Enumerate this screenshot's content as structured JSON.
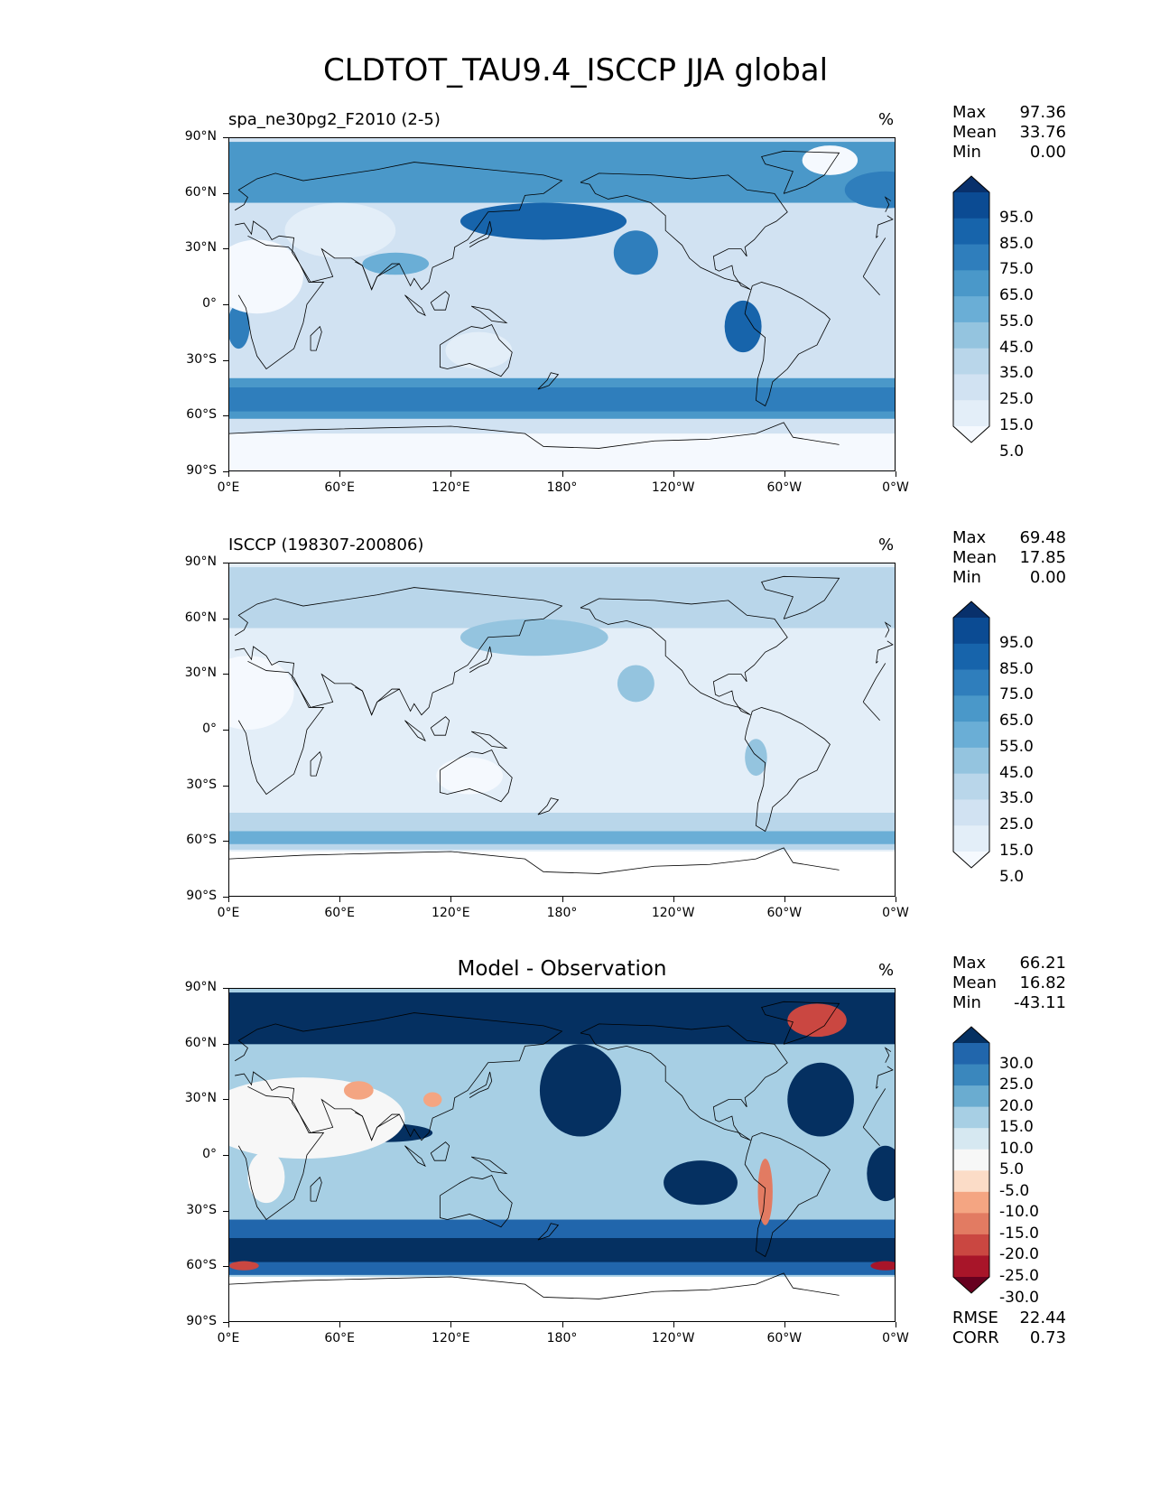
{
  "title": "CLDTOT_TAU9.4_ISCCP JJA global",
  "lat_ticks": [
    "90°N",
    "60°N",
    "30°N",
    "0°",
    "30°S",
    "60°S",
    "90°S"
  ],
  "lon_ticks": [
    "0°E",
    "60°E",
    "120°E",
    "180°",
    "120°W",
    "60°W",
    "0°W"
  ],
  "panels": [
    {
      "subtitle": "spa_ne30pg2_F2010 (2-5)",
      "subtitle_center": "",
      "units": "%",
      "stats": [
        {
          "label": "Max",
          "value": "97.36"
        },
        {
          "label": "Mean",
          "value": "33.76"
        },
        {
          "label": "Min",
          "value": "0.00"
        }
      ],
      "colorbar_labels": [
        "95.0",
        "85.0",
        "75.0",
        "65.0",
        "55.0",
        "45.0",
        "35.0",
        "25.0",
        "15.0",
        "5.0"
      ],
      "colors": [
        "#08306b",
        "#0b4b93",
        "#1764ab",
        "#2f7ebc",
        "#4a98c9",
        "#6aaed6",
        "#94c4df",
        "#b9d6ea",
        "#d1e2f2",
        "#e3eef8",
        "#f5f9fe"
      ]
    },
    {
      "subtitle": "ISCCP (198307-200806)",
      "subtitle_center": "",
      "units": "%",
      "stats": [
        {
          "label": "Max",
          "value": "69.48"
        },
        {
          "label": "Mean",
          "value": "17.85"
        },
        {
          "label": "Min",
          "value": "0.00"
        }
      ],
      "colorbar_labels": [
        "95.0",
        "85.0",
        "75.0",
        "65.0",
        "55.0",
        "45.0",
        "35.0",
        "25.0",
        "15.0",
        "5.0"
      ],
      "colors": [
        "#08306b",
        "#0b4b93",
        "#1764ab",
        "#2f7ebc",
        "#4a98c9",
        "#6aaed6",
        "#94c4df",
        "#b9d6ea",
        "#d1e2f2",
        "#e3eef8",
        "#f5f9fe"
      ]
    },
    {
      "subtitle": "",
      "subtitle_center": "Model - Observation",
      "units": "%",
      "stats": [
        {
          "label": "Max",
          "value": "66.21"
        },
        {
          "label": "Mean",
          "value": "16.82"
        },
        {
          "label": "Min",
          "value": "-43.11"
        }
      ],
      "colorbar_labels": [
        "30.0",
        "25.0",
        "20.0",
        "15.0",
        "10.0",
        "5.0",
        "-5.0",
        "-10.0",
        "-15.0",
        "-20.0",
        "-25.0",
        "-30.0"
      ],
      "colors": [
        "#053061",
        "#2166ac",
        "#3a87bd",
        "#6aacd0",
        "#a7cfe4",
        "#d6e8f1",
        "#f7f7f7",
        "#fbdcc7",
        "#f4a582",
        "#e27b62",
        "#ca4741",
        "#a81529",
        "#67001f"
      ],
      "rmse_label": "RMSE",
      "rmse": "22.44",
      "corr_label": "CORR",
      "corr": "0.73"
    }
  ]
}
